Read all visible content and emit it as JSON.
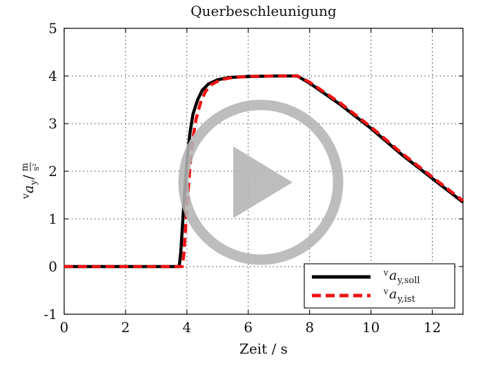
{
  "chart_data": {
    "type": "line",
    "title": "Querbeschleunigung",
    "xlabel": "Zeit / s",
    "ylabel": {
      "pre": "v",
      "sym": "a",
      "sub": "y",
      "unit_num": "m",
      "unit_den": "s²"
    },
    "xlim": [
      0,
      13
    ],
    "ylim": [
      -1,
      5
    ],
    "x_ticks": [
      0,
      2,
      4,
      6,
      8,
      10,
      12
    ],
    "y_ticks": [
      -1,
      0,
      1,
      2,
      3,
      4,
      5
    ],
    "grid": true,
    "legend_position": "bottom-right",
    "series": [
      {
        "name": "v a y,soll",
        "legend": {
          "pre": "v",
          "sym": "a",
          "sub": "y,soll"
        },
        "color": "#000000",
        "style": "solid",
        "x": [
          0,
          3.75,
          3.8,
          3.9,
          4.0,
          4.1,
          4.2,
          4.35,
          4.5,
          4.7,
          5.0,
          5.4,
          6.0,
          7.0,
          7.6,
          8.0,
          9.0,
          10.0,
          11.0,
          12.0,
          13.0
        ],
        "y": [
          0,
          0,
          0.3,
          1.3,
          2.2,
          2.8,
          3.2,
          3.5,
          3.7,
          3.83,
          3.92,
          3.97,
          3.99,
          4.0,
          4.0,
          3.85,
          3.4,
          2.9,
          2.35,
          1.85,
          1.35
        ]
      },
      {
        "name": "v a y,ist",
        "legend": {
          "pre": "v",
          "sym": "a",
          "sub": "y,ist"
        },
        "color": "#ee1111",
        "style": "dashed",
        "x": [
          0,
          3.85,
          3.9,
          4.0,
          4.1,
          4.2,
          4.3,
          4.45,
          4.6,
          4.8,
          5.1,
          5.5,
          6.0,
          7.0,
          7.6,
          8.0,
          9.0,
          10.0,
          11.0,
          12.0,
          13.0
        ],
        "y": [
          0,
          0,
          0.25,
          1.2,
          2.1,
          2.7,
          3.1,
          3.45,
          3.67,
          3.82,
          3.92,
          3.97,
          3.99,
          4.0,
          4.0,
          3.87,
          3.43,
          2.93,
          2.38,
          1.88,
          1.38
        ]
      }
    ]
  },
  "overlay": {
    "icon": "play-icon",
    "color": "#b4b4b4"
  }
}
